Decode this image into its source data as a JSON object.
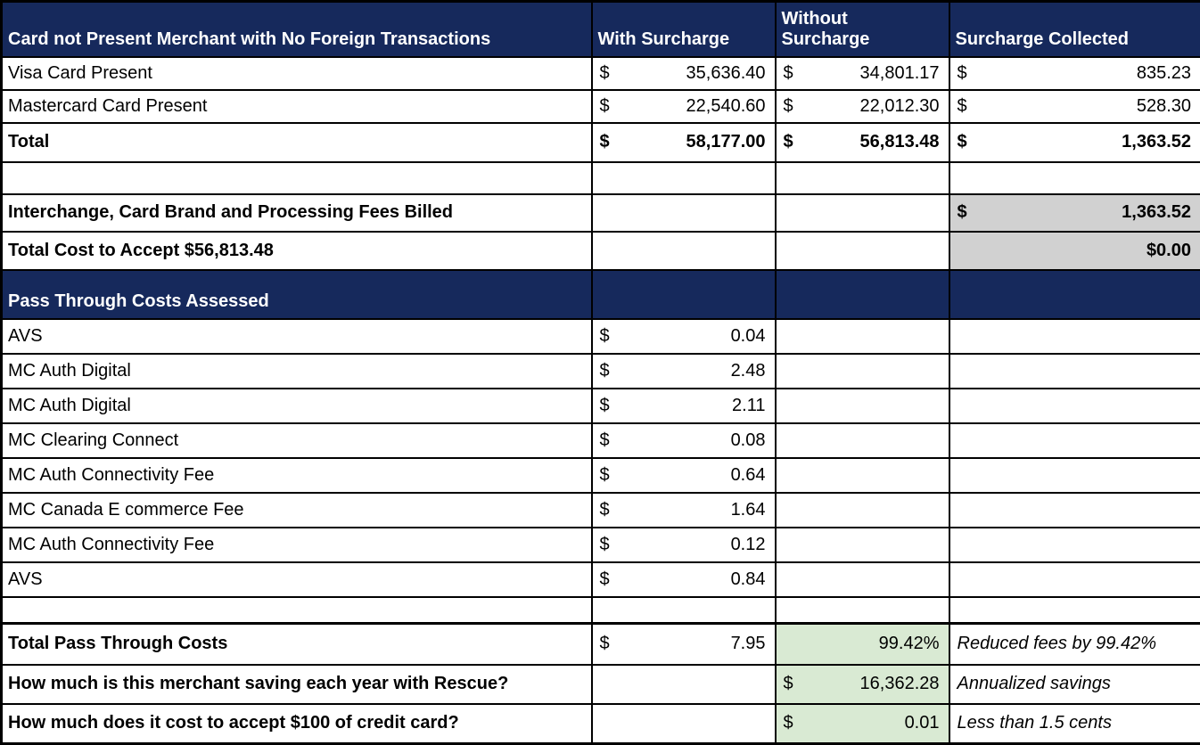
{
  "colors": {
    "navy": "#16295c",
    "gray": "#d1d1d1",
    "green": "#d9ead3"
  },
  "header": {
    "title": "Card not Present Merchant with No Foreign Transactions",
    "with_surcharge": "With Surcharge",
    "without_surcharge": "Without\nSurcharge",
    "surcharge_collected": "Surcharge Collected"
  },
  "card_rows": [
    {
      "label": "Visa Card Present",
      "with_cur": "$",
      "with_amt": "35,636.40",
      "without_cur": "$",
      "without_amt": "34,801.17",
      "collected_cur": "$",
      "collected_amt": "835.23"
    },
    {
      "label": "Mastercard Card Present",
      "with_cur": "$",
      "with_amt": "22,540.60",
      "without_cur": "$",
      "without_amt": "22,012.30",
      "collected_cur": "$",
      "collected_amt": "528.30"
    },
    {
      "label": "Total",
      "with_cur": "$",
      "with_amt": "58,177.00",
      "without_cur": "$",
      "without_amt": "56,813.48",
      "collected_cur": "$",
      "collected_amt": "1,363.52"
    }
  ],
  "fees": {
    "interchange_label": "Interchange, Card Brand and Processing Fees Billed",
    "interchange_cur": "$",
    "interchange_amt": "1,363.52",
    "total_cost_label": "Total Cost to Accept $56,813.48",
    "total_cost_amt": "$0.00"
  },
  "pass_through": {
    "section_title": "Pass Through Costs Assessed",
    "items": [
      {
        "label": "AVS",
        "cur": "$",
        "amt": "0.04"
      },
      {
        "label": "MC Auth Digital",
        "cur": "$",
        "amt": "2.48"
      },
      {
        "label": "MC Auth Digital",
        "cur": "$",
        "amt": "2.11"
      },
      {
        "label": "MC Clearing Connect",
        "cur": "$",
        "amt": "0.08"
      },
      {
        "label": "MC Auth Connectivity Fee",
        "cur": "$",
        "amt": "0.64"
      },
      {
        "label": "MC Canada E commerce Fee",
        "cur": "$",
        "amt": "1.64"
      },
      {
        "label": "MC Auth Connectivity Fee",
        "cur": "$",
        "amt": "0.12"
      },
      {
        "label": "AVS",
        "cur": "$",
        "amt": "0.84"
      }
    ]
  },
  "totals": {
    "total_pass_label": "Total Pass Through Costs",
    "total_pass_cur": "$",
    "total_pass_amt": "7.95",
    "reduction_pct": "99.42%",
    "reduction_note": "Reduced fees by 99.42%",
    "savings_label": "How much is this merchant saving each year with Rescue?",
    "savings_cur": "$",
    "savings_amt": "16,362.28",
    "savings_note": "Annualized savings",
    "cost_label": "How much does it cost to accept $100 of credit card?",
    "cost_cur": "$",
    "cost_amt": "0.01",
    "cost_note": "Less than 1.5 cents"
  }
}
